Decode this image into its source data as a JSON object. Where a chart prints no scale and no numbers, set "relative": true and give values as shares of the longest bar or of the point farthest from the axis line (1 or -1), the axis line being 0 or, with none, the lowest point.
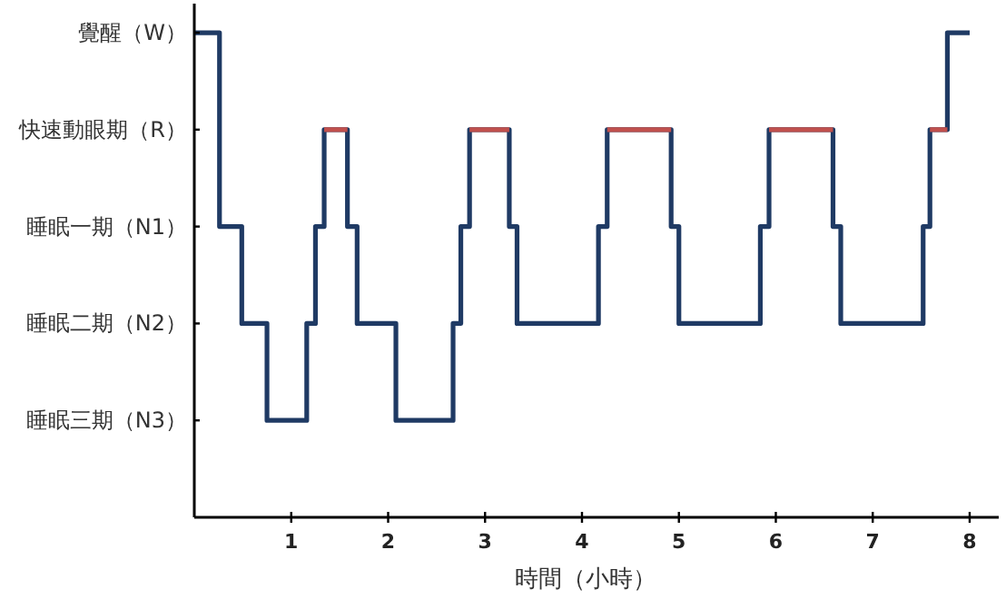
{
  "chart_data": {
    "type": "step",
    "relative": true,
    "xlabel": "時間（小時）",
    "xlim": [
      0,
      8.3
    ],
    "xticks": [
      1,
      2,
      3,
      4,
      5,
      6,
      7,
      8
    ],
    "y_categories": [
      "覺醒（W）",
      "快速動眼期（R）",
      "睡眠一期（N1）",
      "睡眠二期（N2）",
      "睡眠三期（N3）"
    ],
    "grid": false,
    "marker": "none",
    "line_style": "solid",
    "series": [
      {
        "color": "#1f3a64",
        "x": [
          0,
          0.26,
          0.49,
          0.75,
          1.16,
          1.25,
          1.34,
          1.58,
          1.68,
          2.08,
          2.67,
          2.75,
          2.84,
          3.25,
          3.33,
          4.17,
          4.26,
          4.92,
          5.0,
          5.84,
          5.93,
          6.59,
          6.67,
          7.52,
          7.59,
          7.77,
          8.0
        ],
        "values": [
          1,
          0.6,
          0.4,
          0.2,
          0.4,
          0.6,
          0.8,
          0.6,
          0.4,
          0.2,
          0.4,
          0.6,
          0.8,
          0.6,
          0.4,
          0.6,
          0.8,
          0.6,
          0.4,
          0.6,
          0.8,
          0.6,
          0.4,
          0.6,
          0.8,
          1,
          1
        ]
      },
      {
        "type": "line",
        "color": "#c0504d",
        "x": [
          1.34,
          1.58
        ],
        "values": [
          0.8,
          0.8
        ]
      },
      {
        "type": "line",
        "color": "#c0504d",
        "x": [
          2.84,
          3.25
        ],
        "values": [
          0.8,
          0.8
        ]
      },
      {
        "type": "line",
        "color": "#c0504d",
        "x": [
          4.26,
          4.92
        ],
        "values": [
          0.8,
          0.8
        ]
      },
      {
        "type": "line",
        "color": "#c0504d",
        "x": [
          5.93,
          6.59
        ],
        "values": [
          0.8,
          0.8
        ]
      },
      {
        "type": "line",
        "color": "#c0504d",
        "x": [
          7.59,
          7.77
        ],
        "values": [
          0.8,
          0.8
        ]
      }
    ]
  }
}
